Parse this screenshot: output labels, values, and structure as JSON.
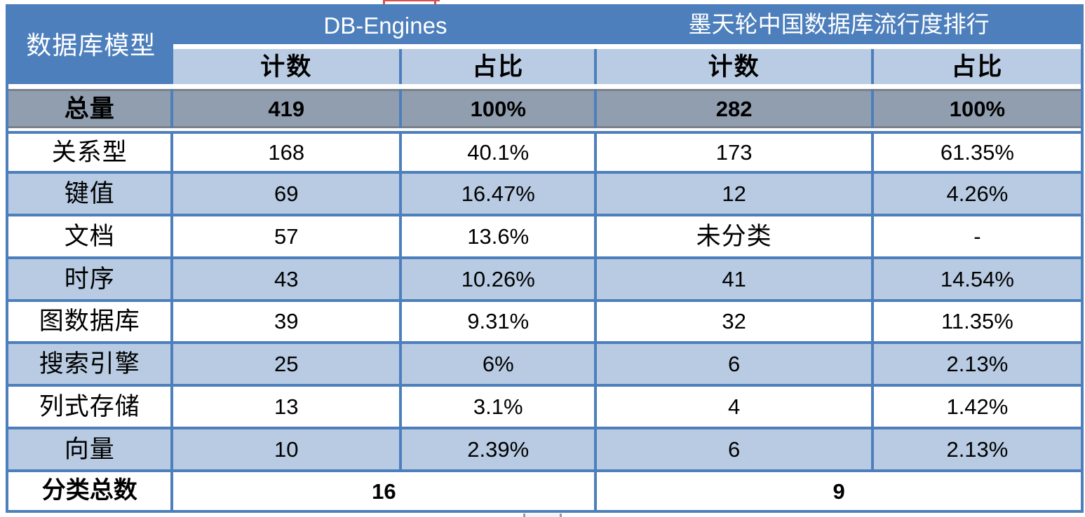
{
  "chart_data": {
    "type": "table",
    "corner_header": "数据库模型",
    "column_groups": [
      {
        "title": "DB-Engines",
        "subcolumns": [
          "计数",
          "占比"
        ]
      },
      {
        "title": "墨天轮中国数据库流行度排行",
        "subcolumns": [
          "计数",
          "占比"
        ]
      }
    ],
    "total_row": {
      "label": "总量",
      "values": [
        "419",
        "100%",
        "282",
        "100%"
      ]
    },
    "rows": [
      {
        "label": "关系型",
        "values": [
          "168",
          "40.1%",
          "173",
          "61.35%"
        ]
      },
      {
        "label": "键值",
        "values": [
          "69",
          "16.47%",
          "12",
          "4.26%"
        ]
      },
      {
        "label": "文档",
        "values": [
          "57",
          "13.6%",
          "未分类",
          "-"
        ]
      },
      {
        "label": "时序",
        "values": [
          "43",
          "10.26%",
          "41",
          "14.54%"
        ]
      },
      {
        "label": "图数据库",
        "values": [
          "39",
          "9.31%",
          "32",
          "11.35%"
        ]
      },
      {
        "label": "搜索引擎",
        "values": [
          "25",
          "6%",
          "6",
          "2.13%"
        ]
      },
      {
        "label": "列式存储",
        "values": [
          "13",
          "3.1%",
          "4",
          "1.42%"
        ]
      },
      {
        "label": "向量",
        "values": [
          "10",
          "2.39%",
          "6",
          "2.13%"
        ]
      }
    ],
    "summary_row": {
      "label": "分类总数",
      "values": [
        "16",
        "9"
      ]
    }
  },
  "colors": {
    "header_blue": "#4d7fbc",
    "subheader_blue": "#b9cce3",
    "band_blue": "#b8cbe2",
    "total_row_gray": "#909eb0",
    "total_row_edge_gray": "#7a8088",
    "border_blue": "#4d7fbc",
    "text_light": "#ffffff",
    "text_dark": "#000000",
    "artifact_red": "#d94f4f",
    "artifact_gray": "#9a9a9a"
  }
}
